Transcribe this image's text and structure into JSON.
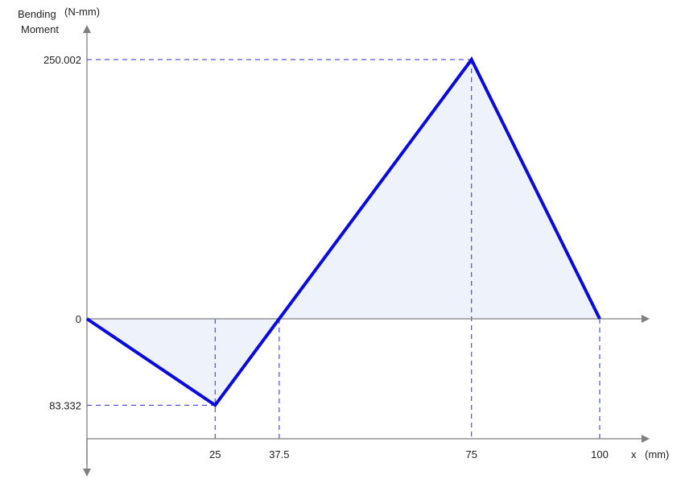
{
  "chart_data": {
    "type": "line",
    "title": "",
    "ylabel_line1": "Bending",
    "ylabel_line2": "Moment",
    "yunit": "(N-mm)",
    "xlabel": "x",
    "xunit": "(mm)",
    "x": [
      0,
      25,
      37.5,
      75,
      100
    ],
    "y": [
      0,
      -83.332,
      0,
      250.002,
      0
    ],
    "xlim": [
      0,
      100
    ],
    "ylim": [
      -83.332,
      250.002
    ],
    "xticks": [
      {
        "value": 25,
        "label": "25"
      },
      {
        "value": 37.5,
        "label": "37.5"
      },
      {
        "value": 75,
        "label": "75"
      },
      {
        "value": 100,
        "label": "100"
      }
    ],
    "yticks": [
      {
        "value": 250.002,
        "label": "250.002"
      },
      {
        "value": 0,
        "label": "0"
      },
      {
        "value": -83.332,
        "label": "83.332"
      }
    ],
    "grid": false,
    "colors": {
      "line": "#0a0adc",
      "fill": "#eef3fb",
      "axis": "#7f7f7f",
      "guide": "#2a2ad0"
    }
  }
}
